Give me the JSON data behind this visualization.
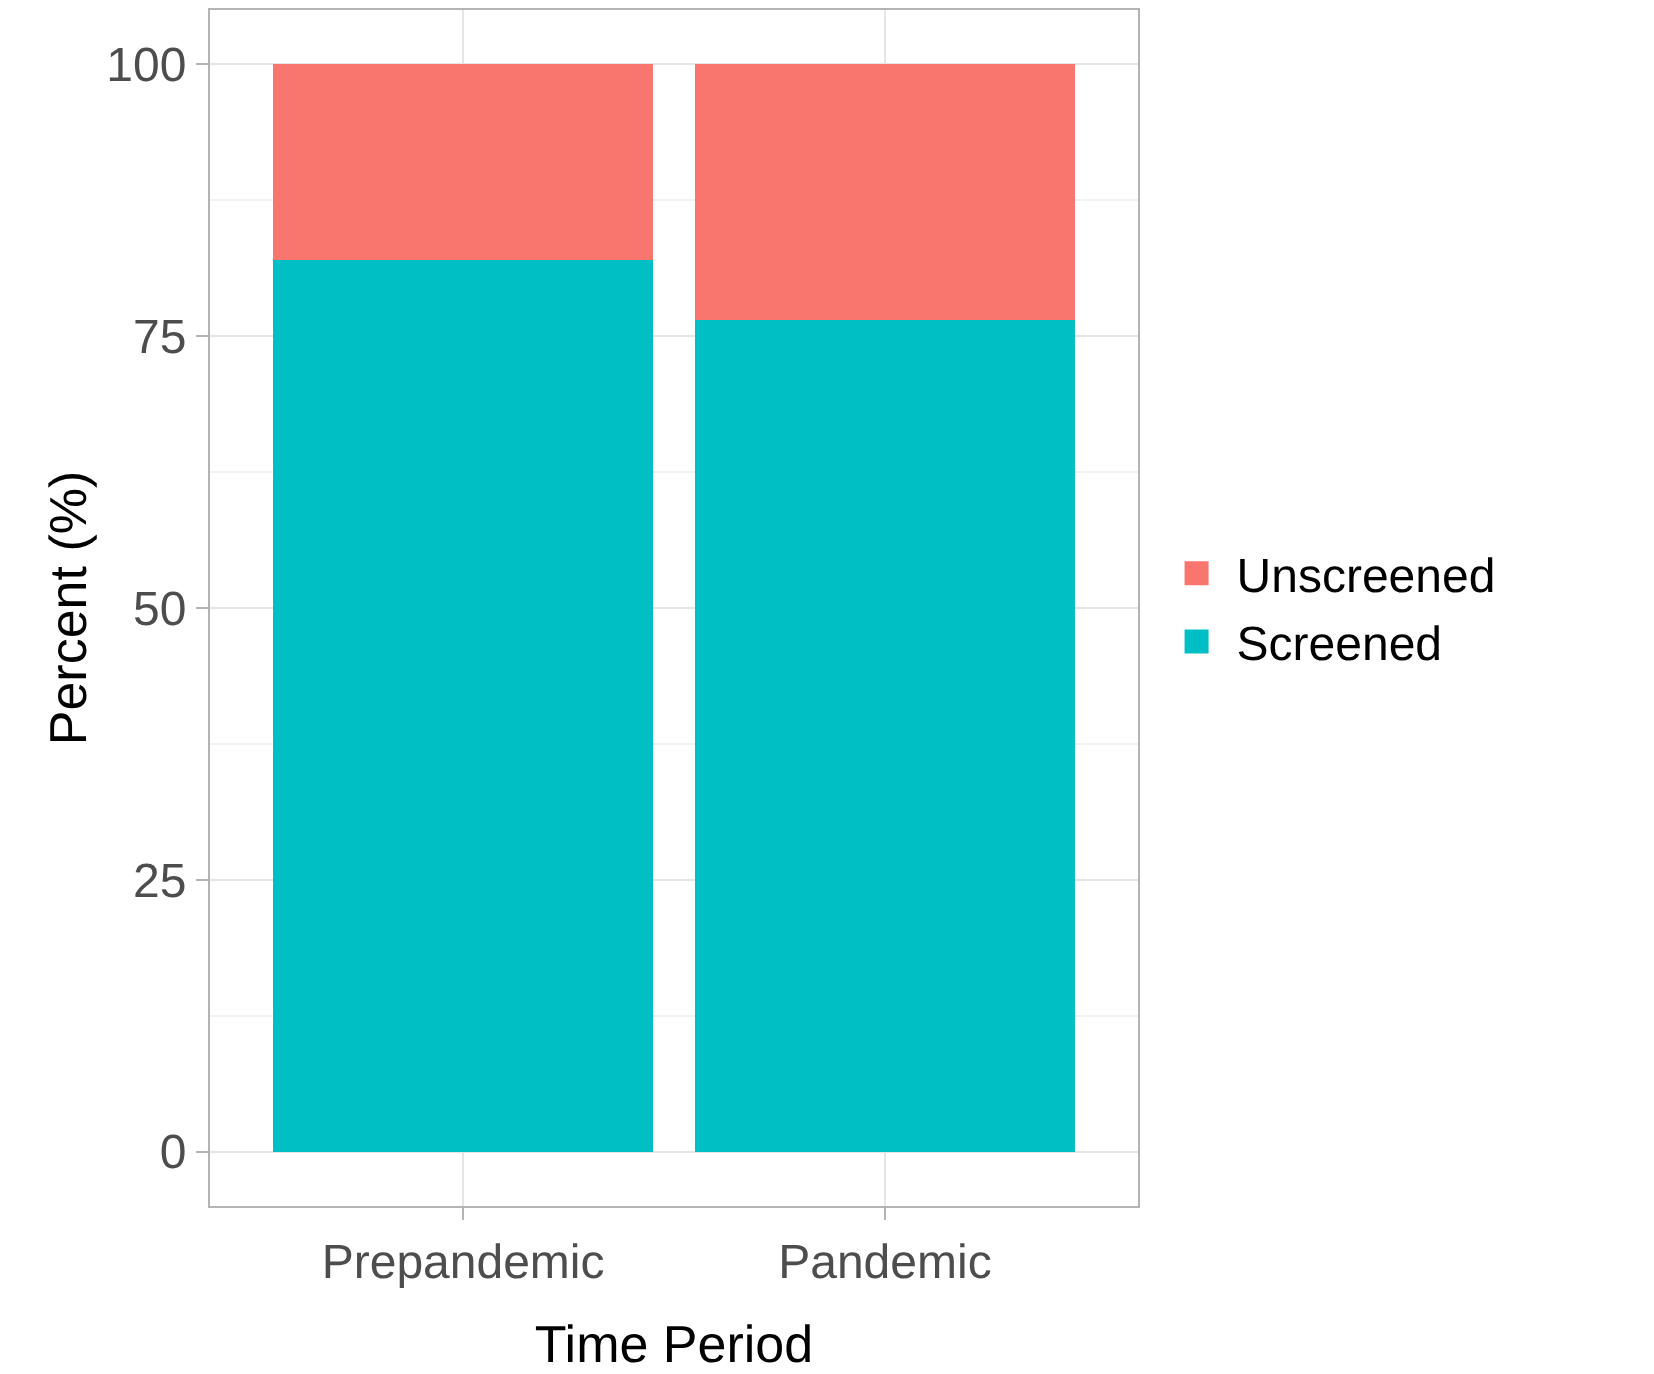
{
  "chart_data": {
    "type": "bar",
    "stacked": true,
    "xlabel": "Time Period",
    "ylabel": "Percent (%)",
    "categories": [
      "Prepandemic",
      "Pandemic"
    ],
    "series": [
      {
        "name": "Screened",
        "color": "#00bfc4",
        "values": [
          82,
          76.5
        ]
      },
      {
        "name": "Unscreened",
        "color": "#f8766d",
        "values": [
          18,
          23.5
        ]
      }
    ],
    "ylim": [
      -5,
      105
    ],
    "yticks": [
      0,
      25,
      50,
      75,
      100
    ],
    "grid": true,
    "legend": "right"
  }
}
